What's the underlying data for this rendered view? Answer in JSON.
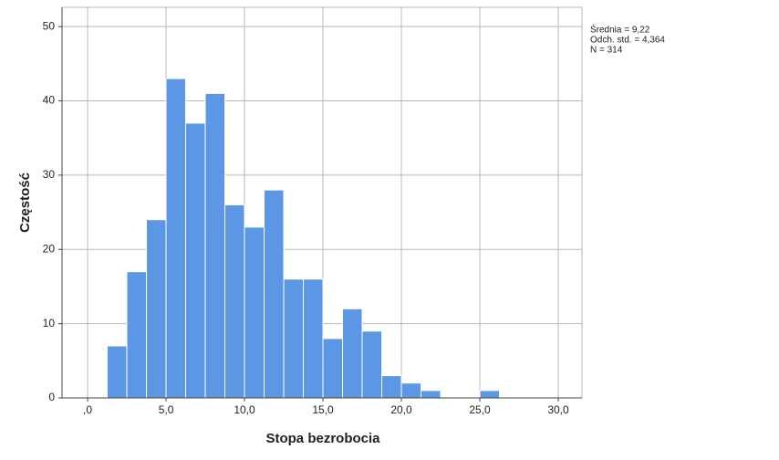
{
  "chart_data": {
    "type": "histogram",
    "x_label": "Stopa bezrobocia",
    "y_label": "Częstość",
    "annotations": [
      "Średnia = 9,22",
      "Odch. std. = 4,364",
      "N = 314"
    ],
    "bins": [
      1.25,
      2.5,
      3.75,
      5,
      6.25,
      7.5,
      8.75,
      10,
      11.25,
      12.5,
      13.75,
      15,
      16.25,
      17.5,
      18.75,
      20,
      21.25,
      22.5,
      23.75,
      25,
      26.25
    ],
    "values": [
      7,
      17,
      24,
      43,
      37,
      41,
      26,
      23,
      28,
      16,
      16,
      8,
      12,
      9,
      3,
      2,
      1,
      0,
      0,
      1
    ],
    "color": "#5b97e5",
    "xlim": [
      -1.63,
      31.51
    ],
    "ylim": [
      0,
      52.6
    ],
    "xticks": [
      {
        "value": 0,
        "label": ",0"
      },
      {
        "value": 5,
        "label": "5,0"
      },
      {
        "value": 10,
        "label": "10,0"
      },
      {
        "value": 15,
        "label": "15,0"
      },
      {
        "value": 20,
        "label": "20,0"
      },
      {
        "value": 25,
        "label": "25,0"
      },
      {
        "value": 30,
        "label": "30,0"
      }
    ],
    "yticks": [
      0,
      10,
      20,
      30,
      40,
      50
    ],
    "grid": true
  }
}
